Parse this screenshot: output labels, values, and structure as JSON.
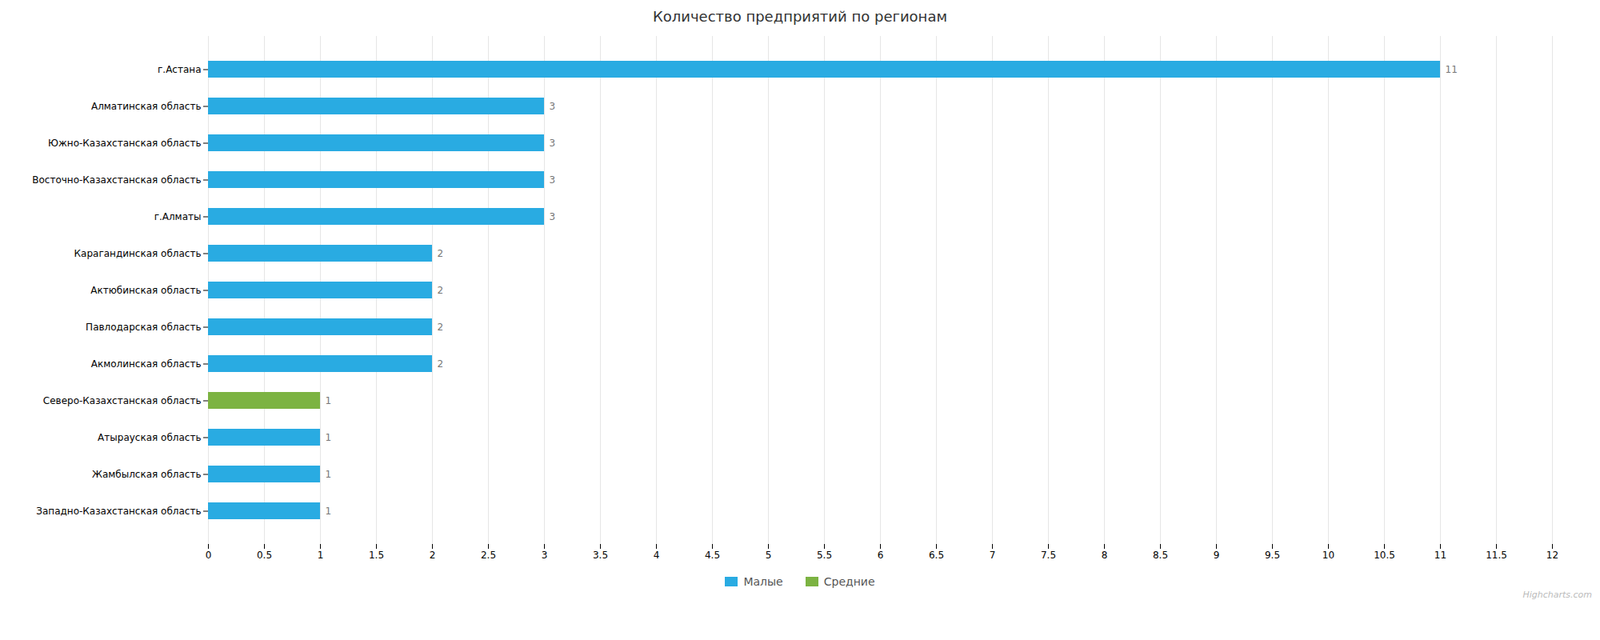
{
  "chart_data": {
    "type": "bar",
    "orientation": "horizontal",
    "title": "Количество предприятий по регионам",
    "categories": [
      "г.Астана",
      "Алматинская область",
      "Южно-Казахстанская область",
      "Восточно-Казахстанская область",
      "г.Алматы",
      "Карагандинская область",
      "Актюбинская область",
      "Павлодарская область",
      "Акмолинская область",
      "Северо-Казахстанская область",
      "Атырауская область",
      "Жамбылская область",
      "Западно-Казахстанская область"
    ],
    "series": [
      {
        "name": "Малые",
        "color": "#29ABE2",
        "values": [
          11,
          3,
          3,
          3,
          3,
          2,
          2,
          2,
          2,
          0,
          1,
          1,
          1
        ]
      },
      {
        "name": "Средние",
        "color": "#7CB342",
        "values": [
          0,
          0,
          0,
          0,
          0,
          0,
          0,
          0,
          0,
          1,
          0,
          0,
          0
        ]
      }
    ],
    "xlim": [
      0,
      12
    ],
    "xticks": [
      0,
      0.5,
      1,
      1.5,
      2,
      2.5,
      3,
      3.5,
      4,
      4.5,
      5,
      5.5,
      6,
      6.5,
      7,
      7.5,
      8,
      8.5,
      9,
      9.5,
      10,
      10.5,
      11,
      11.5,
      12
    ],
    "grid": true,
    "legend": "bottom",
    "data_labels": true,
    "annotations": [
      "Highcharts.com"
    ]
  }
}
